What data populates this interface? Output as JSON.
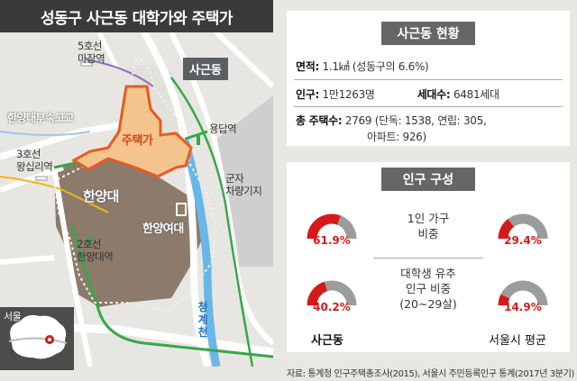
{
  "title": "성동구 사근동 대학가와 주택가",
  "map": {
    "labels": {
      "line5": "5호선\n마장역",
      "sageun": "사근동",
      "yongdap": "용답역",
      "hanyang_hs": "한양대부속고교",
      "jutaek": "주택가",
      "line3": "3호선\n왕십리역",
      "hanyang": "한양대",
      "gunja": "군자\n차량기지",
      "womens": "한양여대",
      "line2": "2호선\n한양대역",
      "stream": "청계천",
      "seoul": "서울"
    }
  },
  "status": {
    "heading": "사근동 현황",
    "area_label": "면적:",
    "area_value": "1.1㎢ (성동구의 6.6%)",
    "pop_label": "인구:",
    "pop_value": "1만1263명",
    "house_label": "세대수:",
    "house_value": "6481세대",
    "total_label": "총 주택수:",
    "total_value": "2769 (단독: 1538, 연립: 305,",
    "total_value2": "아파트: 926)"
  },
  "population": {
    "heading": "인구 구성",
    "single_label": "1인 가구\n비중",
    "student_label": "대학생 유추\n인구 비중\n(20~29살)",
    "col_left": "사근동",
    "col_right": "서울시 평균",
    "single_sageun": "61.9%",
    "single_seoul": "29.4%",
    "student_sageun": "40.2%",
    "student_seoul": "14.9%"
  },
  "chart_data": {
    "type": "pie",
    "categories": [
      "1인 가구 비중",
      "대학생 유추 인구 비중 (20~29살)"
    ],
    "series": [
      {
        "name": "사근동",
        "values": [
          61.9,
          40.2
        ]
      },
      {
        "name": "서울시 평균",
        "values": [
          29.4,
          14.9
        ]
      }
    ],
    "colors": {
      "filled": "#d6191b",
      "rest": "#9c9c9c"
    }
  },
  "source": "자료: 통계청 인구주택총조사(2015), 서울시 주민등록인구 통계(2017년 3분기)"
}
